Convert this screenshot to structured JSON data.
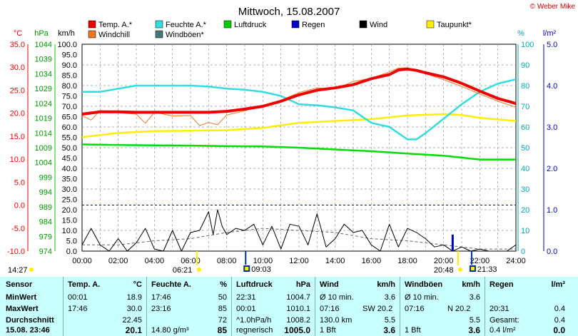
{
  "header": {
    "title": "Mittwoch, 15.08.2007",
    "copyright": "© Weber Mike",
    "units_left": [
      "°C",
      "hPa",
      "km/h"
    ],
    "units_right": [
      "%",
      "l/m²"
    ]
  },
  "legend": [
    {
      "label": "Temp. A.*",
      "color": "#ee0000"
    },
    {
      "label": "Feuchte A.*",
      "color": "#33dddd"
    },
    {
      "label": "Luftdruck",
      "color": "#00cc00"
    },
    {
      "label": "Regen",
      "color": "#0000cc"
    },
    {
      "label": "Wind",
      "color": "#000000"
    },
    {
      "label": "Taupunkt*",
      "color": "#ffee00"
    },
    {
      "label": "Windchill",
      "color": "#ee7722"
    },
    {
      "label": "Windböen*",
      "color": "#447777"
    }
  ],
  "chart_data": {
    "type": "line",
    "title": "Mittwoch, 15.08.2007",
    "x_ticks": [
      "00:00",
      "02:00",
      "04:00",
      "06:00",
      "08:00",
      "10:00",
      "12:00",
      "14:00",
      "16:00",
      "18:00",
      "20:00",
      "22:00",
      "24:00"
    ],
    "x_range_hours": [
      0,
      24
    ],
    "axes": {
      "temp_c": {
        "range": [
          -10,
          35
        ],
        "ticks": [
          "35.0",
          "30.0",
          "25.0",
          "20.0",
          "15.0",
          "10.0",
          "5.0",
          "0.0",
          "-5.0",
          "-10.0"
        ]
      },
      "pressure_hpa": {
        "range": [
          974,
          1044
        ],
        "ticks": [
          "1044",
          "1039",
          "1034",
          "1029",
          "1024",
          "1019",
          "1014",
          "1009",
          "1004",
          "999",
          "994",
          "989",
          "984",
          "979",
          "974"
        ]
      },
      "wind_kmh": {
        "range": [
          0,
          100
        ],
        "ticks": [
          "100.0",
          "95.0",
          "90.0",
          "85.0",
          "80.0",
          "75.0",
          "70.0",
          "65.0",
          "60.0",
          "55.0",
          "50.0",
          "45.0",
          "40.0",
          "35.0",
          "30.0",
          "25.0",
          "20.0",
          "15.0",
          "10.0",
          "5.0",
          "0.0"
        ]
      },
      "humidity_pct": {
        "range": [
          0,
          100
        ],
        "ticks": [
          "100",
          "90",
          "80",
          "70",
          "60",
          "50",
          "40",
          "30",
          "20",
          "10",
          "0"
        ]
      },
      "rain_lm2": {
        "range": [
          0,
          5
        ],
        "ticks": [
          "5.0",
          "4.0",
          "3.0",
          "2.0",
          "1.0",
          "0.0"
        ]
      }
    },
    "grid": true,
    "series": [
      {
        "name": "Temp. A.*",
        "axis": "temp_c",
        "x": [
          0,
          1,
          2,
          3,
          4,
          5,
          6,
          7,
          8,
          9,
          10,
          11,
          12,
          13,
          14,
          15,
          16,
          17,
          17.5,
          18,
          18.5,
          19,
          20,
          21,
          22,
          23,
          24
        ],
        "y": [
          19.8,
          20.3,
          20.3,
          20.2,
          20.2,
          20.2,
          20.2,
          20.2,
          20.4,
          20.9,
          21.5,
          22.6,
          24,
          25,
          25.5,
          26.2,
          27.5,
          28.4,
          29.4,
          29.6,
          29.3,
          28.8,
          27.9,
          26.5,
          24.8,
          23.2,
          22.1
        ]
      },
      {
        "name": "Windchill",
        "axis": "temp_c",
        "x": [
          0,
          0.5,
          1,
          2,
          3,
          3.5,
          4,
          5,
          6,
          6.5,
          7,
          7.5,
          8,
          9,
          10,
          11,
          12,
          13,
          14,
          15,
          16,
          17,
          17.5,
          18,
          18.5,
          19,
          20,
          21,
          22,
          23,
          24
        ],
        "y": [
          19.5,
          18.5,
          20.6,
          20.1,
          19.8,
          17.8,
          20.2,
          19.4,
          19.5,
          17.3,
          18.0,
          17.5,
          19.6,
          20.5,
          21.7,
          22.8,
          24.5,
          25.5,
          25.3,
          26.9,
          27.6,
          29.0,
          29.8,
          29.9,
          29.1,
          28.6,
          27.3,
          25.8,
          24.2,
          22.6,
          21.3
        ]
      },
      {
        "name": "Feuchte A.*",
        "axis": "humidity_pct",
        "x": [
          0,
          1,
          2,
          3,
          4,
          5,
          6,
          7,
          8,
          9,
          10,
          11,
          12,
          13,
          14,
          15,
          16,
          17,
          17.5,
          18,
          18.5,
          19,
          20,
          21,
          22,
          23,
          24
        ],
        "y": [
          77,
          77,
          78.5,
          80,
          80,
          80,
          80,
          79.5,
          78.5,
          78,
          77,
          75,
          71,
          70.5,
          69.5,
          68,
          62,
          60,
          57,
          54,
          54,
          57,
          64,
          71,
          77,
          81,
          83
        ]
      },
      {
        "name": "Taupunkt*",
        "axis": "temp_c",
        "x": [
          0,
          2,
          4,
          6,
          8,
          10,
          12,
          14,
          16,
          18,
          20,
          21,
          22,
          24
        ],
        "y": [
          14.8,
          15.7,
          16.1,
          16.2,
          16.3,
          16.8,
          17.9,
          18.3,
          18.7,
          19.5,
          19.8,
          19.6,
          19.0,
          18.3
        ]
      },
      {
        "name": "Luftdruck",
        "axis": "pressure_hpa",
        "x": [
          0,
          2,
          4,
          6,
          8,
          10,
          12,
          14,
          16,
          18,
          20,
          22,
          24
        ],
        "y": [
          1010.1,
          1009.9,
          1009.8,
          1009.7,
          1009.5,
          1009.4,
          1009.0,
          1008.4,
          1007.8,
          1007.0,
          1006.3,
          1005.0,
          1005.0
        ]
      },
      {
        "name": "Wind",
        "axis": "wind_kmh",
        "x": [
          0,
          0.5,
          1,
          1.5,
          2,
          2.5,
          3,
          3.5,
          4,
          4.5,
          5,
          5.5,
          6,
          6.5,
          7,
          7.25,
          7.5,
          7.75,
          8,
          8.5,
          9,
          9.5,
          10,
          10.5,
          11,
          11.5,
          12,
          12.5,
          13,
          13.5,
          14,
          14.5,
          15,
          15.5,
          16,
          16.5,
          17,
          17.5,
          18,
          18.5,
          19,
          19.5,
          20,
          20.5,
          21,
          21.5,
          22,
          22.5,
          23,
          23.5,
          24
        ],
        "y": [
          3,
          11,
          3,
          0,
          6,
          0,
          4,
          11,
          1,
          0,
          10,
          0,
          9,
          10,
          19,
          8,
          20,
          12,
          8,
          11,
          10,
          13,
          3,
          12,
          1,
          13,
          12,
          3,
          18,
          2,
          6,
          13,
          9,
          10,
          3,
          0,
          13,
          2,
          11,
          9,
          6,
          2,
          3,
          0,
          2,
          0,
          1,
          0,
          0,
          0,
          3
        ]
      },
      {
        "name": "Windböen*",
        "axis": "wind_kmh",
        "x": [
          0,
          2,
          4,
          6,
          8,
          10,
          12,
          14,
          16,
          18,
          20,
          22,
          24
        ],
        "y": [
          3,
          3,
          5,
          6,
          9,
          11,
          10,
          9,
          6,
          5,
          3,
          1,
          1
        ]
      }
    ],
    "rain_bars": [
      {
        "x": 20.5,
        "value": 0.4
      }
    ],
    "min_markers": [
      {
        "label": "14:27",
        "x": 0
      },
      {
        "label": "06:21",
        "x": 6.35
      },
      {
        "label": "20:48",
        "x": 20.8
      }
    ],
    "max_markers": [
      {
        "label": "09:03",
        "x": 9.05
      },
      {
        "label": "21:33",
        "x": 21.55
      }
    ]
  },
  "table": {
    "sensor": {
      "head": "Sensor",
      "rows": [
        "MinWert",
        "MaxWert",
        "Durchschnitt",
        "15.08. 23:46"
      ]
    },
    "temp": {
      "head": "Temp. A.",
      "unit": "°C",
      "rows": [
        [
          "00:01",
          "18.9"
        ],
        [
          "17:46",
          "30.0"
        ],
        [
          "",
          "22.45"
        ],
        [
          "",
          "20.1"
        ]
      ]
    },
    "hum": {
      "head": "Feuchte A.",
      "unit": "%",
      "rows": [
        [
          "17:46",
          "50"
        ],
        [
          "23:16",
          "85"
        ],
        [
          "",
          "72"
        ],
        [
          "14.80 g/m³",
          "85"
        ]
      ]
    },
    "press": {
      "head": "Luftdruck",
      "unit": "hPa",
      "rows": [
        [
          "22:31",
          "1004.7"
        ],
        [
          "00:01",
          "1010.1"
        ],
        [
          "^1.0hPa/h",
          "1008.2"
        ],
        [
          "regnerisch",
          "1005.0"
        ]
      ]
    },
    "wind": {
      "head": "Wind",
      "unit": "km/h",
      "rows": [
        [
          "Ø 10 min.",
          "",
          "3.6"
        ],
        [
          "07:16",
          "SW 20.2",
          ""
        ],
        [
          "130.0 km",
          "",
          "5.5"
        ],
        [
          "1 Bft",
          "",
          "3.6"
        ]
      ]
    },
    "gust": {
      "head": "Windböen",
      "unit": "km/h",
      "rows": [
        [
          "Ø 10 min.",
          "",
          "3.6"
        ],
        [
          "07:16",
          "N 20.2",
          ""
        ],
        [
          "",
          "",
          "5.5"
        ],
        [
          "1 Bft",
          "",
          "3.6"
        ]
      ]
    },
    "rain": {
      "head": "Regen",
      "unit": "l/m²",
      "rows": [
        [
          "",
          ""
        ],
        [
          "20:31",
          "0.4"
        ],
        [
          "Gesamt:",
          "0.4"
        ],
        [
          "0.4 l/m²",
          "0.0"
        ]
      ]
    }
  }
}
